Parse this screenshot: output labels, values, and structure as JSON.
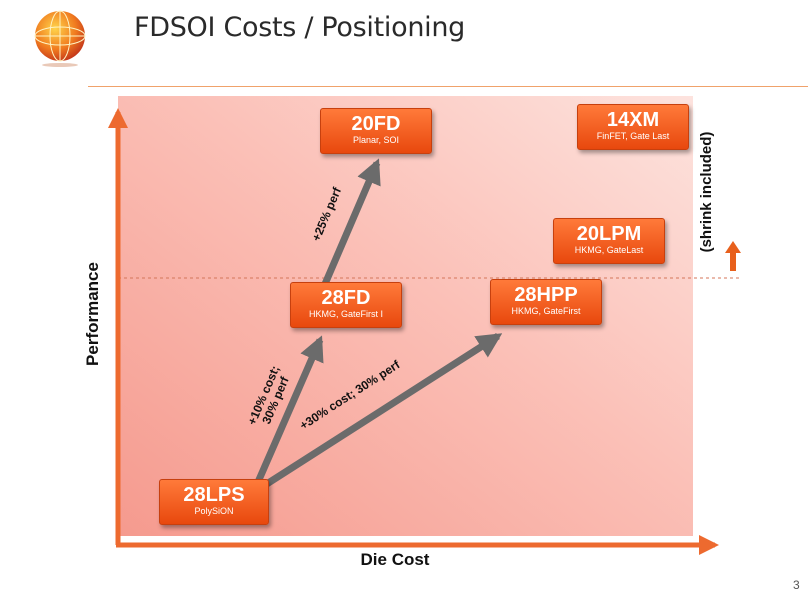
{
  "slide": {
    "title": "FDSOI Costs / Positioning",
    "page_number": "3",
    "logo_icon": "globe-logo-icon"
  },
  "axes": {
    "x_label": "Die Cost",
    "y_label": "Performance",
    "side_note": "(shrink included)"
  },
  "nodes": [
    {
      "id": "28lps",
      "name": "28LPS",
      "sub": "PolySiON"
    },
    {
      "id": "28fd",
      "name": "28FD",
      "sub": "HKMG, GateFirst I"
    },
    {
      "id": "20fd",
      "name": "20FD",
      "sub": "Planar, SOI"
    },
    {
      "id": "28hpp",
      "name": "28HPP",
      "sub": "HKMG, GateFirst"
    },
    {
      "id": "20lpm",
      "name": "20LPM",
      "sub": "HKMG, GateLast"
    },
    {
      "id": "14xm",
      "name": "14XM",
      "sub": "FinFET, Gate Last"
    }
  ],
  "annotations": {
    "a1_line1": "+10% cost;",
    "a1_line2": "30% perf",
    "a2": "+30% cost; 30% perf",
    "a3": "+25% perf"
  },
  "colors": {
    "accent": "#ff6a2b",
    "node_fill": "#f0571a",
    "arrow": "#6b6b6b",
    "axis": "#ed6a2f"
  }
}
